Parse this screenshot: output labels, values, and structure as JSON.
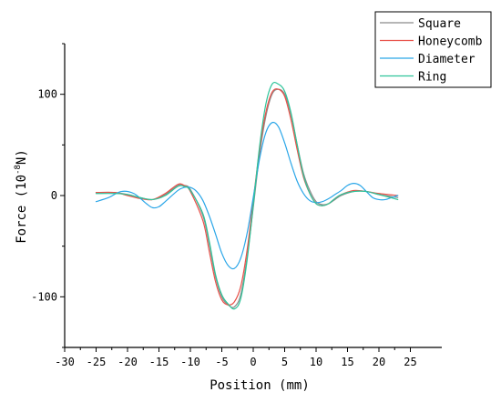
{
  "chart_data": {
    "type": "line",
    "xlabel": "Position (mm)",
    "ylabel": "Force (10",
    "ylabel_exponent": "-8",
    "ylabel_unit": "N)",
    "xlim": [
      -30,
      30
    ],
    "ylim": [
      -150,
      150
    ],
    "x_ticks": [
      -30,
      -25,
      -20,
      -15,
      -10,
      -5,
      0,
      5,
      10,
      15,
      20,
      25
    ],
    "y_ticks": [
      -100,
      0,
      100
    ],
    "grid": false,
    "legend_position": "top-right",
    "series": [
      {
        "name": "Square",
        "color": "#8b8b8b",
        "points": [
          [
            -25,
            3
          ],
          [
            -22,
            3
          ],
          [
            -20,
            1
          ],
          [
            -18,
            -2
          ],
          [
            -16,
            -4
          ],
          [
            -14,
            1
          ],
          [
            -12,
            10
          ],
          [
            -11,
            10
          ],
          [
            -10,
            6
          ],
          [
            -8,
            -20
          ],
          [
            -7,
            -48
          ],
          [
            -6,
            -80
          ],
          [
            -5,
            -100
          ],
          [
            -4,
            -108
          ],
          [
            -3,
            -110
          ],
          [
            -2,
            -98
          ],
          [
            -1,
            -62
          ],
          [
            0,
            -12
          ],
          [
            1,
            40
          ],
          [
            2,
            78
          ],
          [
            3,
            100
          ],
          [
            4,
            105
          ],
          [
            5,
            100
          ],
          [
            6,
            80
          ],
          [
            7,
            50
          ],
          [
            8,
            22
          ],
          [
            9,
            5
          ],
          [
            10,
            -6
          ],
          [
            11,
            -9
          ],
          [
            12,
            -8
          ],
          [
            13,
            -4
          ],
          [
            14,
            0
          ],
          [
            16,
            4
          ],
          [
            18,
            4
          ],
          [
            20,
            1
          ],
          [
            23,
            -2
          ]
        ]
      },
      {
        "name": "Honeycomb",
        "color": "#e8524a",
        "points": [
          [
            -25,
            3
          ],
          [
            -22,
            3
          ],
          [
            -20,
            0
          ],
          [
            -18,
            -3
          ],
          [
            -16,
            -4
          ],
          [
            -14,
            2
          ],
          [
            -12,
            11
          ],
          [
            -11,
            10
          ],
          [
            -10,
            4
          ],
          [
            -8,
            -25
          ],
          [
            -7,
            -55
          ],
          [
            -6,
            -85
          ],
          [
            -5,
            -103
          ],
          [
            -4,
            -108
          ],
          [
            -3,
            -105
          ],
          [
            -2,
            -90
          ],
          [
            -1,
            -55
          ],
          [
            0,
            -5
          ],
          [
            1,
            45
          ],
          [
            2,
            82
          ],
          [
            3,
            102
          ],
          [
            4,
            105
          ],
          [
            5,
            98
          ],
          [
            6,
            75
          ],
          [
            7,
            45
          ],
          [
            8,
            18
          ],
          [
            9,
            2
          ],
          [
            10,
            -8
          ],
          [
            11,
            -10
          ],
          [
            12,
            -8
          ],
          [
            13,
            -3
          ],
          [
            14,
            1
          ],
          [
            16,
            5
          ],
          [
            18,
            4
          ],
          [
            20,
            2
          ],
          [
            23,
            0
          ]
        ]
      },
      {
        "name": "Diameter",
        "color": "#2aa6e8",
        "points": [
          [
            -25,
            -6
          ],
          [
            -23,
            -2
          ],
          [
            -21,
            4
          ],
          [
            -19,
            2
          ],
          [
            -17,
            -8
          ],
          [
            -16,
            -12
          ],
          [
            -15,
            -11
          ],
          [
            -14,
            -6
          ],
          [
            -12,
            5
          ],
          [
            -11,
            8
          ],
          [
            -10,
            8
          ],
          [
            -9,
            4
          ],
          [
            -8,
            -5
          ],
          [
            -7,
            -20
          ],
          [
            -6,
            -38
          ],
          [
            -5,
            -57
          ],
          [
            -4,
            -69
          ],
          [
            -3,
            -72
          ],
          [
            -2,
            -62
          ],
          [
            -1,
            -38
          ],
          [
            0,
            -2
          ],
          [
            1,
            36
          ],
          [
            2,
            62
          ],
          [
            3,
            72
          ],
          [
            4,
            68
          ],
          [
            5,
            52
          ],
          [
            6,
            32
          ],
          [
            7,
            14
          ],
          [
            8,
            2
          ],
          [
            9,
            -5
          ],
          [
            10,
            -7
          ],
          [
            11,
            -6
          ],
          [
            12,
            -3
          ],
          [
            13,
            1
          ],
          [
            14,
            5
          ],
          [
            15,
            10
          ],
          [
            16,
            12
          ],
          [
            17,
            10
          ],
          [
            18,
            4
          ],
          [
            19,
            -2
          ],
          [
            20,
            -4
          ],
          [
            21,
            -4
          ],
          [
            22,
            -2
          ],
          [
            23,
            0
          ]
        ]
      },
      {
        "name": "Ring",
        "color": "#2ec49a",
        "points": [
          [
            -25,
            2
          ],
          [
            -22,
            2
          ],
          [
            -20,
            1
          ],
          [
            -18,
            -2
          ],
          [
            -16,
            -4
          ],
          [
            -14,
            0
          ],
          [
            -12,
            9
          ],
          [
            -11,
            9
          ],
          [
            -10,
            5
          ],
          [
            -8,
            -18
          ],
          [
            -7,
            -45
          ],
          [
            -6,
            -78
          ],
          [
            -5,
            -98
          ],
          [
            -4,
            -107
          ],
          [
            -3,
            -112
          ],
          [
            -2,
            -102
          ],
          [
            -1,
            -65
          ],
          [
            0,
            -10
          ],
          [
            1,
            48
          ],
          [
            2,
            90
          ],
          [
            3,
            110
          ],
          [
            4,
            110
          ],
          [
            5,
            103
          ],
          [
            6,
            82
          ],
          [
            7,
            50
          ],
          [
            8,
            20
          ],
          [
            9,
            2
          ],
          [
            10,
            -8
          ],
          [
            11,
            -10
          ],
          [
            12,
            -8
          ],
          [
            13,
            -3
          ],
          [
            14,
            1
          ],
          [
            16,
            4
          ],
          [
            18,
            4
          ],
          [
            20,
            1
          ],
          [
            23,
            -4
          ]
        ]
      }
    ]
  }
}
